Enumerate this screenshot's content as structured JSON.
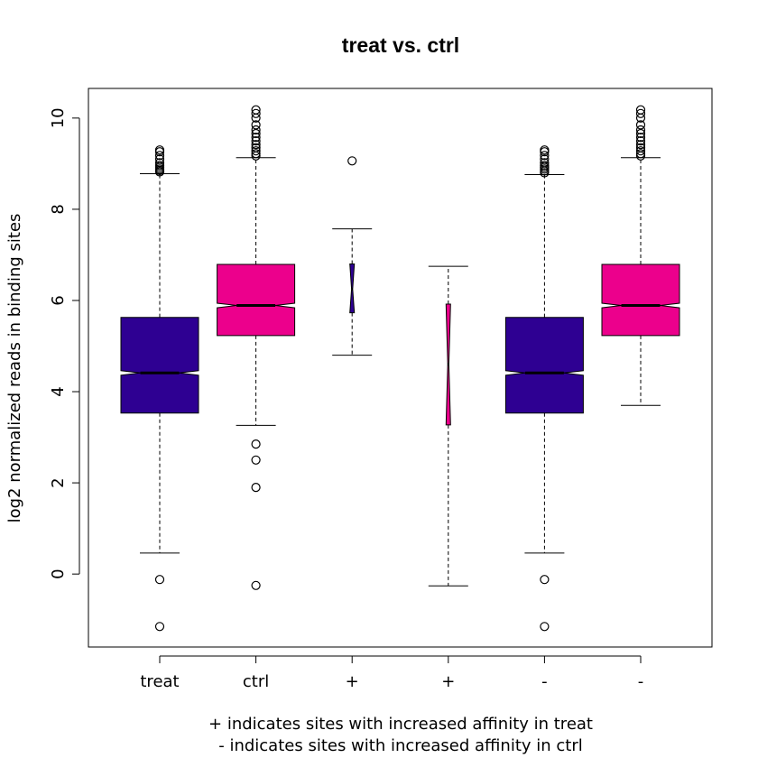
{
  "chart_data": {
    "type": "boxplot",
    "title": "treat vs. ctrl",
    "ylabel": "log2 normalized reads in binding sites",
    "xlabel_lines": [
      "+ indicates sites with increased affinity in treat",
      "- indicates sites with increased affinity in ctrl"
    ],
    "ylim": [
      -1.6,
      10.65
    ],
    "yticks": [
      0,
      2,
      4,
      6,
      8,
      10
    ],
    "notched": true,
    "colors": {
      "treat": "#2e0092",
      "ctrl": "#ec008c"
    },
    "boxes": [
      {
        "label": "treat",
        "color": "#2e0092",
        "q1": 3.53,
        "median": 4.41,
        "q3": 5.63,
        "whisker_low": 0.46,
        "whisker_high": 8.78,
        "notch": 0.05,
        "outliers": [
          8.82,
          8.85,
          8.88,
          8.92,
          8.96,
          9.02,
          9.1,
          9.18,
          9.26,
          9.3,
          -0.12,
          -1.15
        ]
      },
      {
        "label": "ctrl",
        "color": "#ec008c",
        "q1": 5.23,
        "median": 5.89,
        "q3": 6.79,
        "whisker_low": 3.26,
        "whisker_high": 9.13,
        "notch": 0.05,
        "outliers": [
          9.17,
          9.22,
          9.28,
          9.35,
          9.42,
          9.5,
          9.58,
          9.66,
          9.74,
          9.85,
          10.0,
          10.1,
          10.18,
          2.85,
          2.5,
          1.9,
          -0.25
        ]
      },
      {
        "label": "+",
        "color": "#2e0092",
        "q1": 5.73,
        "median": 6.25,
        "q3": 6.8,
        "whisker_low": 4.8,
        "whisker_high": 7.57,
        "notch": 0.55,
        "outliers": [
          9.06
        ]
      },
      {
        "label": "+",
        "color": "#ec008c",
        "q1": 3.27,
        "median": 4.6,
        "q3": 5.92,
        "whisker_low": -0.26,
        "whisker_high": 6.75,
        "notch": 1.5,
        "outliers": []
      },
      {
        "label": "-",
        "color": "#2e0092",
        "q1": 3.53,
        "median": 4.41,
        "q3": 5.63,
        "whisker_low": 0.46,
        "whisker_high": 8.76,
        "notch": 0.05,
        "outliers": [
          8.8,
          8.84,
          8.88,
          8.92,
          8.96,
          9.02,
          9.1,
          9.18,
          9.26,
          9.3,
          -0.12,
          -1.15
        ]
      },
      {
        "label": "-",
        "color": "#ec008c",
        "q1": 5.23,
        "median": 5.89,
        "q3": 6.79,
        "whisker_low": 3.7,
        "whisker_high": 9.13,
        "notch": 0.05,
        "outliers": [
          9.17,
          9.22,
          9.28,
          9.35,
          9.42,
          9.5,
          9.58,
          9.66,
          9.74,
          9.85,
          10.0,
          10.1,
          10.18
        ]
      }
    ]
  }
}
